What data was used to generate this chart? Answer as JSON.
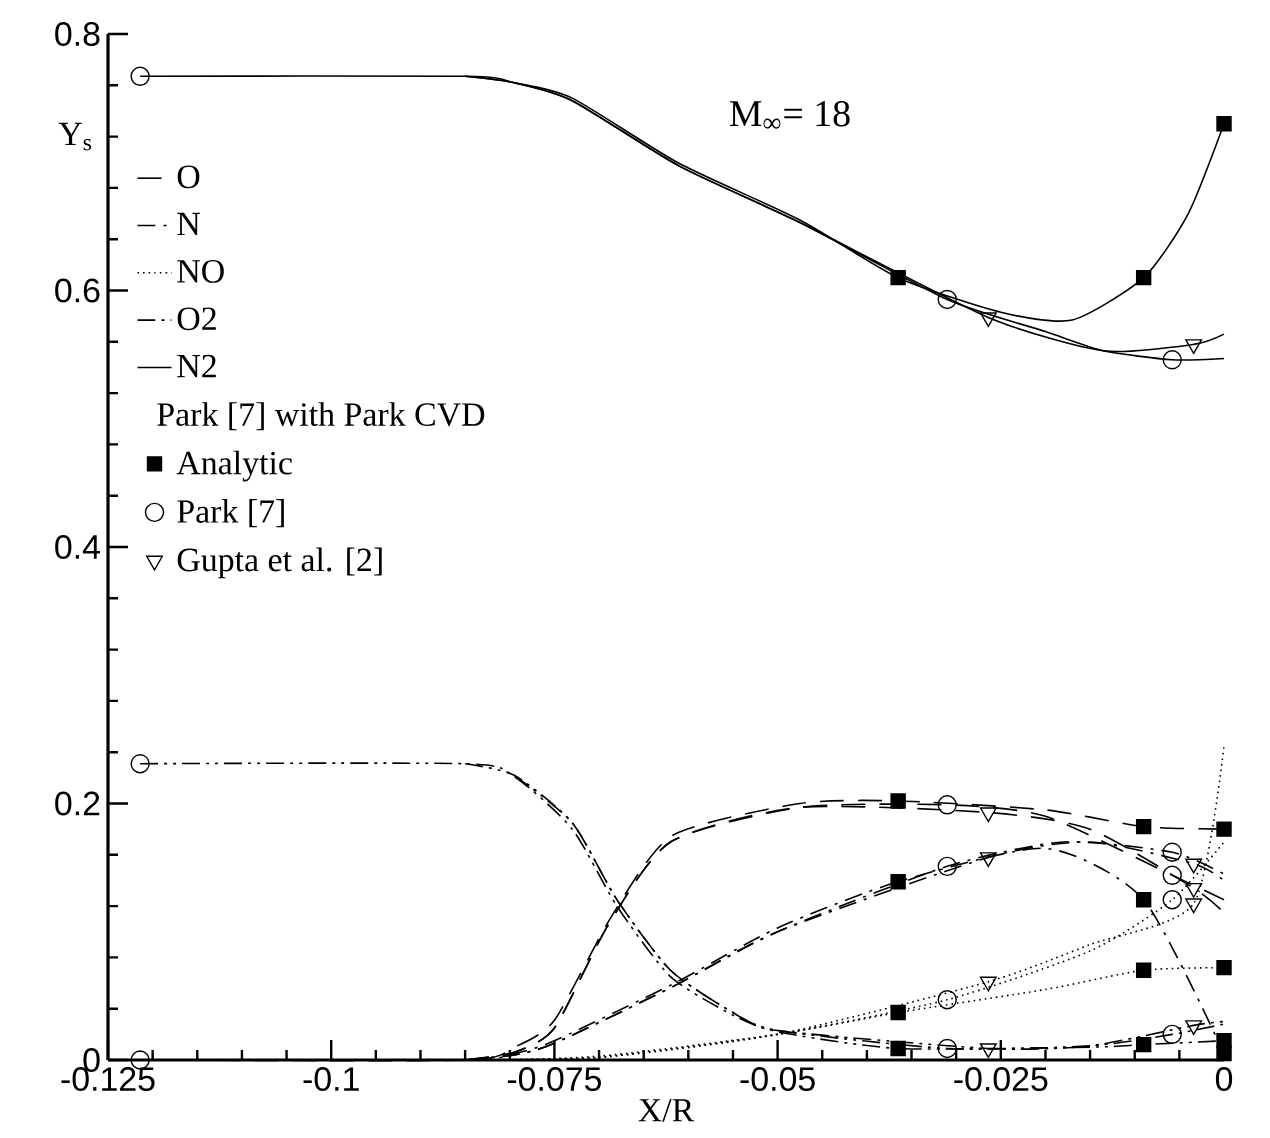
{
  "chart_data": {
    "type": "line",
    "xlabel": "X/R",
    "ylabel": "Y$_{s}$",
    "legend_title": "Park [7] with Park CVD",
    "annotations": [
      "M$_{∞}$= 18"
    ],
    "xlim": [
      -0.125,
      0
    ],
    "ylim": [
      0,
      0.8
    ],
    "xticks": [
      -0.125,
      -0.1,
      -0.075,
      -0.05,
      -0.025,
      0
    ],
    "yticks": [
      0,
      0.2,
      0.4,
      0.6,
      0.8
    ],
    "grid": false,
    "legend": "top left",
    "series": [
      {
        "name": "O",
        "color": "#000000",
        "line_style": "dashed",
        "x": [
          -0.1214,
          -0.085,
          -0.0795,
          -0.075,
          -0.0686,
          -0.0618,
          -0.0475,
          -0.0365,
          -0.02,
          -0.009,
          0
        ],
        "values": [
          0,
          0,
          0.01,
          0.031,
          0.112,
          0.175,
          0.2,
          0.202,
          0.195,
          0.182,
          0.18
        ]
      },
      {
        "name": "N",
        "color": "#000000",
        "line_style": "dashdot",
        "x": [
          -0.1214,
          -0.085,
          -0.0795,
          -0.075,
          -0.0618,
          -0.05,
          -0.0365,
          -0.02,
          -0.009,
          0
        ],
        "values": [
          0,
          0,
          0.005,
          0.015,
          0.059,
          0.103,
          0.139,
          0.165,
          0.125,
          0.005
        ]
      },
      {
        "name": "NO",
        "color": "#000000",
        "line_style": "dotted",
        "x": [
          -0.1214,
          -0.085,
          -0.07,
          -0.05,
          -0.0365,
          -0.02,
          -0.009,
          0
        ],
        "values": [
          0,
          0,
          0.003,
          0.02,
          0.037,
          0.055,
          0.07,
          0.072
        ]
      },
      {
        "name": "O2",
        "color": "#000000",
        "line_style": "dashdotdot",
        "x": [
          -0.1214,
          -0.085,
          -0.0795,
          -0.073,
          -0.068,
          -0.062,
          -0.055,
          -0.05,
          -0.0365,
          -0.015,
          -0.009,
          0
        ],
        "values": [
          0.231,
          0.231,
          0.221,
          0.18,
          0.12,
          0.065,
          0.035,
          0.022,
          0.009,
          0.01,
          0.012,
          0.015
        ]
      },
      {
        "name": "N2",
        "color": "#000000",
        "line_style": "solid",
        "x": [
          -0.1214,
          -0.085,
          -0.0795,
          -0.073,
          -0.061,
          -0.0475,
          -0.0365,
          -0.025,
          -0.017,
          -0.009,
          -0.004,
          0
        ],
        "values": [
          0.767,
          0.767,
          0.762,
          0.75,
          0.699,
          0.655,
          0.61,
          0.583,
          0.577,
          0.61,
          0.66,
          0.73
        ]
      },
      {
        "color": "#000000",
        "line_style": "dashed",
        "x": [
          -0.085,
          -0.0795,
          -0.075,
          -0.069,
          -0.062,
          -0.0475,
          -0.031,
          -0.02,
          -0.0058,
          0
        ],
        "values": [
          0,
          0.006,
          0.025,
          0.105,
          0.17,
          0.197,
          0.199,
          0.19,
          0.144,
          0.125
        ]
      },
      {
        "color": "#000000",
        "line_style": "dashed",
        "x": [
          -0.085,
          -0.0795,
          -0.075,
          -0.069,
          -0.062,
          -0.0475,
          -0.0264,
          -0.015,
          -0.0034,
          0
        ],
        "values": [
          0,
          0.006,
          0.025,
          0.105,
          0.17,
          0.197,
          0.193,
          0.18,
          0.134,
          0.115
        ]
      },
      {
        "color": "#000000",
        "line_style": "dashdot",
        "x": [
          -0.085,
          -0.0795,
          -0.075,
          -0.0618,
          -0.05,
          -0.031,
          -0.018,
          -0.0058,
          0
        ],
        "values": [
          0,
          0.004,
          0.013,
          0.057,
          0.1,
          0.151,
          0.17,
          0.162,
          0.145
        ]
      },
      {
        "color": "#000000",
        "line_style": "dashdot",
        "x": [
          -0.085,
          -0.0795,
          -0.075,
          -0.0618,
          -0.05,
          -0.0264,
          -0.015,
          -0.0034,
          0
        ],
        "values": [
          0,
          0.004,
          0.013,
          0.057,
          0.1,
          0.158,
          0.17,
          0.153,
          0.14
        ]
      },
      {
        "color": "#000000",
        "line_style": "dotted",
        "x": [
          -0.085,
          -0.07,
          -0.05,
          -0.031,
          -0.015,
          -0.0058,
          0
        ],
        "values": [
          0,
          0.002,
          0.02,
          0.047,
          0.085,
          0.125,
          0.17
        ]
      },
      {
        "color": "#000000",
        "line_style": "dotted",
        "x": [
          -0.085,
          -0.07,
          -0.05,
          -0.0264,
          -0.015,
          -0.0034,
          0
        ],
        "values": [
          0,
          0.002,
          0.02,
          0.061,
          0.09,
          0.122,
          0.245
        ]
      },
      {
        "color": "#000000",
        "line_style": "dashdotdot",
        "x": [
          -0.0795,
          -0.073,
          -0.068,
          -0.062,
          -0.055,
          -0.05,
          -0.031,
          -0.015,
          -0.0058,
          0
        ],
        "values": [
          0.222,
          0.185,
          0.125,
          0.07,
          0.037,
          0.023,
          0.009,
          0.011,
          0.02,
          0.028
        ]
      },
      {
        "color": "#000000",
        "line_style": "dashdotdot",
        "x": [
          -0.085,
          -0.0795,
          -0.073,
          -0.068,
          -0.062,
          -0.055,
          -0.05,
          -0.0264,
          -0.015,
          -0.0034,
          0
        ],
        "values": [
          0.231,
          0.222,
          0.185,
          0.125,
          0.07,
          0.037,
          0.023,
          0.009,
          0.011,
          0.027,
          0.03
        ]
      },
      {
        "color": "#000000",
        "line_style": "solid",
        "x": [
          -0.085,
          -0.0795,
          -0.073,
          -0.061,
          -0.0475,
          -0.031,
          -0.02,
          -0.0135,
          -0.0058,
          0
        ],
        "values": [
          0.767,
          0.762,
          0.748,
          0.697,
          0.653,
          0.593,
          0.568,
          0.553,
          0.546,
          0.547
        ]
      },
      {
        "color": "#000000",
        "line_style": "solid",
        "x": [
          -0.085,
          -0.0795,
          -0.073,
          -0.061,
          -0.0475,
          -0.0264,
          -0.0135,
          -0.0034,
          0
        ],
        "values": [
          0.767,
          0.762,
          0.748,
          0.697,
          0.653,
          0.579,
          0.553,
          0.558,
          0.566
        ]
      },
      {
        "name": "Analytic",
        "type": "scatter",
        "marker": "square",
        "color": "#000000",
        "x": [
          -0.0365,
          -0.0365,
          -0.0365,
          -0.0365,
          -0.0365,
          -0.009,
          -0.009,
          -0.009,
          -0.009,
          -0.009,
          0,
          0,
          0,
          0,
          0
        ],
        "values": [
          0.61,
          0.202,
          0.139,
          0.037,
          0.009,
          0.61,
          0.182,
          0.125,
          0.07,
          0.012,
          0.73,
          0.18,
          0.072,
          0.015,
          0.005
        ]
      },
      {
        "name": "Park [7]",
        "type": "scatter",
        "marker": "circle",
        "color": "#000000",
        "x": [
          -0.1214,
          -0.1214,
          -0.1214,
          -0.031,
          -0.031,
          -0.031,
          -0.031,
          -0.031,
          -0.0058,
          -0.0058,
          -0.0058,
          -0.0058,
          -0.0058
        ],
        "values": [
          0.767,
          0.231,
          0,
          0.593,
          0.199,
          0.151,
          0.047,
          0.009,
          0.546,
          0.144,
          0.162,
          0.125,
          0.02
        ]
      },
      {
        "name": "Gupta et al. [2]",
        "type": "scatter",
        "marker": "triangle",
        "color": "#000000",
        "x": [
          -0.0264,
          -0.0264,
          -0.0264,
          -0.0264,
          -0.0264,
          -0.0034,
          -0.0034,
          -0.0034,
          -0.0034,
          -0.0034
        ],
        "values": [
          0.579,
          0.193,
          0.158,
          0.061,
          0.009,
          0.558,
          0.134,
          0.153,
          0.122,
          0.027
        ]
      }
    ]
  }
}
